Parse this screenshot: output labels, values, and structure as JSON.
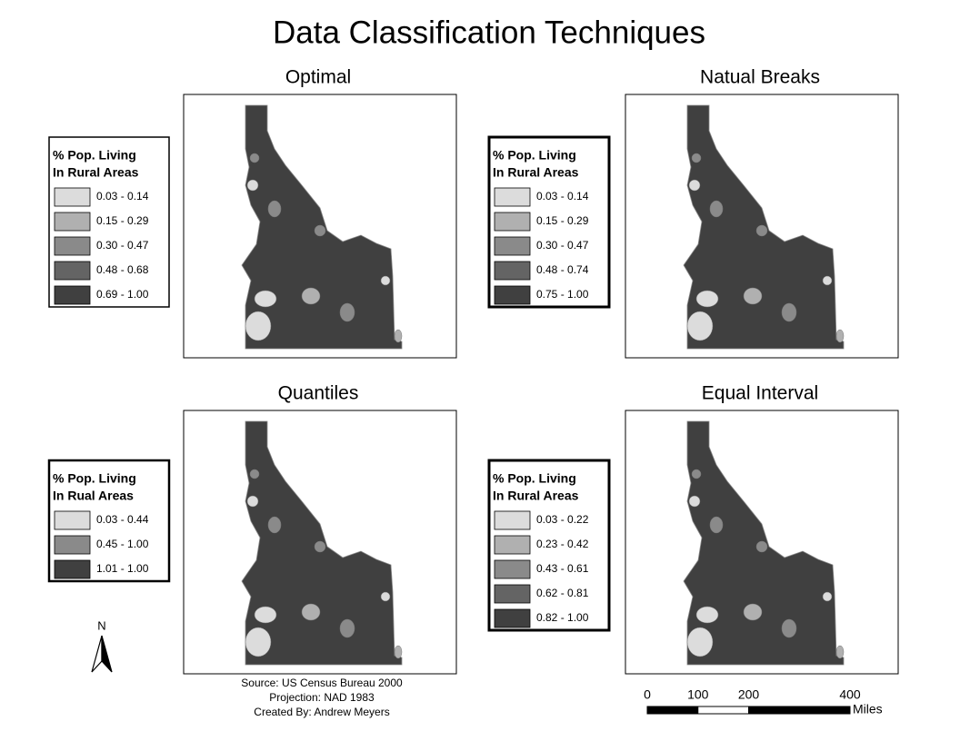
{
  "title": "Data Classification Techniques",
  "maps": [
    {
      "title": "Optimal",
      "legend": {
        "title_lines": [
          "% Pop. Living",
          "In Rural Areas"
        ],
        "classes": [
          {
            "label": "0.03 - 0.14",
            "color": "#dcdcdc"
          },
          {
            "label": "0.15 - 0.29",
            "color": "#b0b0b0"
          },
          {
            "label": "0.30 - 0.47",
            "color": "#8a8a8a"
          },
          {
            "label": "0.48 - 0.68",
            "color": "#646464"
          },
          {
            "label": "0.69 - 1.00",
            "color": "#404040"
          }
        ]
      }
    },
    {
      "title": "Natual Breaks",
      "legend": {
        "title_lines": [
          "% Pop. Living",
          "In Rural Areas"
        ],
        "classes": [
          {
            "label": "0.03 - 0.14",
            "color": "#dcdcdc"
          },
          {
            "label": "0.15 - 0.29",
            "color": "#b0b0b0"
          },
          {
            "label": "0.30 - 0.47",
            "color": "#8a8a8a"
          },
          {
            "label": "0.48 - 0.74",
            "color": "#646464"
          },
          {
            "label": "0.75 - 1.00",
            "color": "#404040"
          }
        ]
      }
    },
    {
      "title": "Quantiles",
      "legend": {
        "title_lines": [
          "% Pop. Living",
          "In Rual Areas"
        ],
        "classes": [
          {
            "label": "0.03 - 0.44",
            "color": "#dcdcdc"
          },
          {
            "label": "0.45 - 1.00",
            "color": "#8a8a8a"
          },
          {
            "label": "1.01 - 1.00",
            "color": "#404040"
          }
        ]
      }
    },
    {
      "title": "Equal Interval",
      "legend": {
        "title_lines": [
          "% Pop. Living",
          "In Rural Areas"
        ],
        "classes": [
          {
            "label": "0.03 - 0.22",
            "color": "#dcdcdc"
          },
          {
            "label": "0.23 - 0.42",
            "color": "#b0b0b0"
          },
          {
            "label": "0.43 - 0.61",
            "color": "#8a8a8a"
          },
          {
            "label": "0.62 - 0.81",
            "color": "#646464"
          },
          {
            "label": "0.82 - 1.00",
            "color": "#404040"
          }
        ]
      }
    }
  ],
  "north_arrow": "N",
  "credits": [
    "Source: US Census Bureau 2000",
    "Projection: NAD 1983",
    "Created By: Andrew Meyers"
  ],
  "scale_bar": {
    "ticks": [
      0,
      100,
      200,
      400
    ],
    "unit": "Miles"
  }
}
